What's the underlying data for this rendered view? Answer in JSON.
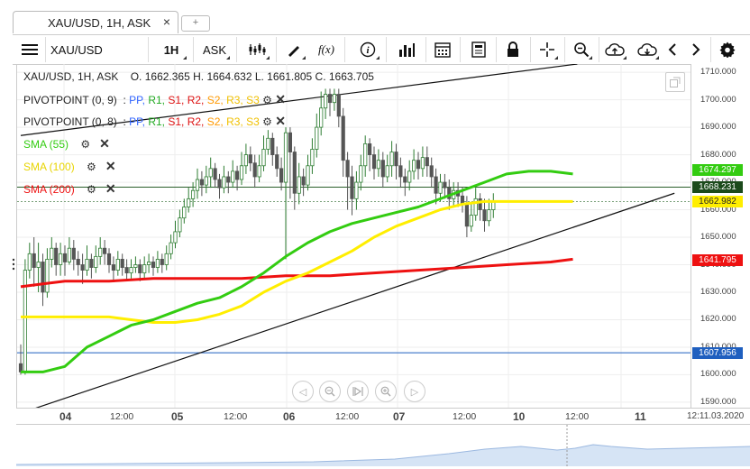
{
  "tab": {
    "title": "XAU/USD, 1H, ASK",
    "close": "×",
    "add": "+"
  },
  "toolbar": {
    "menu_icon": "hamburger-icon",
    "symbol": "XAU/USD",
    "period": "1H",
    "side": "ASK",
    "fx_label": "f(x)",
    "info_label": "i"
  },
  "legend": {
    "ohlc_header": "XAU/USD, 1H, ASK",
    "ohlc_values": "O. 1662.365  H. 1664.632  L. 1661.805  C. 1663.705",
    "pivot1": {
      "name": "PIVOTPOINT (0, 9)",
      "sep": ":",
      "pp": "PP,",
      "r1": "R1,",
      "s1": "S1,",
      "r2": "R2,",
      "s2": "S2,",
      "r3": "R3,",
      "s3": "S3"
    },
    "pivot2": {
      "name": "PIVOTPOINT (0, 8)",
      "sep": ":",
      "pp": "PP,",
      "r1": "R1,",
      "s1": "S1,",
      "r2": "R2,",
      "s2": "S2,",
      "r3": "R3,",
      "s3": "S3"
    },
    "sma55": "SMA (55)",
    "sma100": "SMA (100)",
    "sma200": "SMA (200)"
  },
  "colors": {
    "candle_up": "#2e7d32",
    "candle_down": "#555555",
    "sma55": "#33cc11",
    "sma100": "#ffee00",
    "sma200": "#ee1111",
    "pp": "#3366ff",
    "r1": "#22aa22",
    "s1": "#dd1111",
    "r2": "#dd1111",
    "s2": "#ff9900",
    "r3": "#f0c000",
    "s3": "#f0c000"
  },
  "price_axis": {
    "ticks": [
      "1710.000",
      "1700.000",
      "1690.000",
      "1680.000",
      "1670.000",
      "1660.000",
      "1650.000",
      "1640.000",
      "1630.000",
      "1620.000",
      "1610.000",
      "1600.000",
      "1590.000"
    ],
    "labels": [
      {
        "text": "1674.297",
        "color": "#33cc11",
        "fg": "#ffffff"
      },
      {
        "text": "1668.231",
        "color": "#1b4a1b",
        "fg": "#ffffff"
      },
      {
        "text": "1662.982",
        "color": "#ffee00",
        "fg": "#222222"
      },
      {
        "text": "1641.795",
        "color": "#ee1111",
        "fg": "#ffffff"
      },
      {
        "text": "1607.956",
        "color": "#1f5fbf",
        "fg": "#ffffff"
      }
    ]
  },
  "time_axis": {
    "labels": [
      {
        "text": "04",
        "bold": true
      },
      {
        "text": "12:00",
        "bold": false
      },
      {
        "text": "05",
        "bold": true
      },
      {
        "text": "12:00",
        "bold": false
      },
      {
        "text": "06",
        "bold": true
      },
      {
        "text": "12:00",
        "bold": false
      },
      {
        "text": "07",
        "bold": true
      },
      {
        "text": "12:00",
        "bold": false
      },
      {
        "text": "10",
        "bold": true
      },
      {
        "text": "12:00",
        "bold": false
      },
      {
        "text": "11",
        "bold": true
      }
    ],
    "cursor_time": "12:11.03.2020"
  },
  "chart_data": {
    "type": "candlestick",
    "symbol": "XAU/USD",
    "timeframe": "1H",
    "ylim": [
      1588,
      1713
    ],
    "sma55": [
      [
        0,
        1601
      ],
      [
        5,
        1601
      ],
      [
        10,
        1603
      ],
      [
        15,
        1610
      ],
      [
        20,
        1614
      ],
      [
        25,
        1618
      ],
      [
        30,
        1620
      ],
      [
        35,
        1623
      ],
      [
        40,
        1626
      ],
      [
        45,
        1628
      ],
      [
        50,
        1632
      ],
      [
        55,
        1637
      ],
      [
        60,
        1643
      ],
      [
        65,
        1648
      ],
      [
        70,
        1652
      ],
      [
        75,
        1655
      ],
      [
        80,
        1657
      ],
      [
        85,
        1659
      ],
      [
        90,
        1661
      ],
      [
        95,
        1664
      ],
      [
        100,
        1667
      ],
      [
        105,
        1670
      ],
      [
        110,
        1673
      ],
      [
        115,
        1674
      ],
      [
        120,
        1674
      ],
      [
        125,
        1673
      ]
    ],
    "sma100": [
      [
        0,
        1621
      ],
      [
        10,
        1621
      ],
      [
        20,
        1621
      ],
      [
        25,
        1620
      ],
      [
        30,
        1619
      ],
      [
        35,
        1619
      ],
      [
        40,
        1620
      ],
      [
        45,
        1622
      ],
      [
        50,
        1625
      ],
      [
        55,
        1630
      ],
      [
        60,
        1634
      ],
      [
        65,
        1637
      ],
      [
        70,
        1641
      ],
      [
        75,
        1645
      ],
      [
        80,
        1650
      ],
      [
        85,
        1654
      ],
      [
        90,
        1657
      ],
      [
        95,
        1660
      ],
      [
        100,
        1662
      ],
      [
        105,
        1663
      ],
      [
        110,
        1663
      ],
      [
        115,
        1663
      ],
      [
        120,
        1663
      ],
      [
        125,
        1663
      ]
    ],
    "sma200": [
      [
        0,
        1632
      ],
      [
        5,
        1633
      ],
      [
        10,
        1634
      ],
      [
        20,
        1634
      ],
      [
        30,
        1635
      ],
      [
        40,
        1635
      ],
      [
        50,
        1635
      ],
      [
        60,
        1636
      ],
      [
        70,
        1636
      ],
      [
        80,
        1637
      ],
      [
        90,
        1638
      ],
      [
        100,
        1639
      ],
      [
        110,
        1640
      ],
      [
        120,
        1641
      ],
      [
        125,
        1642
      ]
    ],
    "trendline_upper": [
      [
        0,
        1687
      ],
      [
        126,
        1713
      ]
    ],
    "trendline_lower": [
      [
        0,
        1586
      ],
      [
        148,
        1666
      ]
    ],
    "hline_green": 1668.231,
    "hline_dashed": 1662.982,
    "hline_blue": 1607.956,
    "candles": [
      [
        1604,
        1601,
        1611,
        1600
      ],
      [
        1601,
        1638,
        1642,
        1600
      ],
      [
        1638,
        1644,
        1648,
        1635
      ],
      [
        1644,
        1639,
        1650,
        1632
      ],
      [
        1639,
        1641,
        1648,
        1630
      ],
      [
        1641,
        1630,
        1644,
        1625
      ],
      [
        1630,
        1642,
        1646,
        1628
      ],
      [
        1642,
        1646,
        1650,
        1639
      ],
      [
        1646,
        1640,
        1648,
        1636
      ],
      [
        1640,
        1644,
        1648,
        1636
      ],
      [
        1644,
        1641,
        1647,
        1636
      ],
      [
        1641,
        1646,
        1650,
        1640
      ],
      [
        1646,
        1642,
        1649,
        1638
      ],
      [
        1642,
        1640,
        1645,
        1636
      ],
      [
        1640,
        1638,
        1644,
        1633
      ],
      [
        1638,
        1642,
        1647,
        1636
      ],
      [
        1642,
        1639,
        1644,
        1635
      ],
      [
        1639,
        1643,
        1647,
        1637
      ],
      [
        1643,
        1646,
        1650,
        1640
      ],
      [
        1646,
        1644,
        1649,
        1640
      ],
      [
        1644,
        1640,
        1646,
        1637
      ],
      [
        1640,
        1638,
        1643,
        1634
      ],
      [
        1638,
        1642,
        1645,
        1636
      ],
      [
        1642,
        1639,
        1644,
        1636
      ],
      [
        1639,
        1637,
        1642,
        1634
      ],
      [
        1637,
        1639,
        1642,
        1635
      ],
      [
        1639,
        1640,
        1643,
        1637
      ],
      [
        1640,
        1637,
        1642,
        1634
      ],
      [
        1637,
        1640,
        1643,
        1635
      ],
      [
        1640,
        1641,
        1644,
        1637
      ],
      [
        1641,
        1639,
        1643,
        1636
      ],
      [
        1639,
        1642,
        1645,
        1637
      ],
      [
        1642,
        1640,
        1644,
        1637
      ],
      [
        1640,
        1644,
        1647,
        1638
      ],
      [
        1644,
        1648,
        1651,
        1642
      ],
      [
        1648,
        1652,
        1656,
        1646
      ],
      [
        1652,
        1657,
        1660,
        1650
      ],
      [
        1657,
        1661,
        1664,
        1655
      ],
      [
        1661,
        1664,
        1668,
        1659
      ],
      [
        1664,
        1667,
        1670,
        1661
      ],
      [
        1667,
        1671,
        1675,
        1664
      ],
      [
        1671,
        1669,
        1674,
        1665
      ],
      [
        1669,
        1672,
        1676,
        1666
      ],
      [
        1672,
        1675,
        1679,
        1668
      ],
      [
        1675,
        1671,
        1677,
        1668
      ],
      [
        1671,
        1668,
        1673,
        1664
      ],
      [
        1668,
        1672,
        1676,
        1666
      ],
      [
        1672,
        1670,
        1674,
        1666
      ],
      [
        1670,
        1674,
        1678,
        1668
      ],
      [
        1674,
        1671,
        1676,
        1667
      ],
      [
        1671,
        1676,
        1681,
        1669
      ],
      [
        1676,
        1680,
        1684,
        1673
      ],
      [
        1680,
        1677,
        1683,
        1674
      ],
      [
        1677,
        1672,
        1680,
        1668
      ],
      [
        1672,
        1676,
        1680,
        1670
      ],
      [
        1676,
        1682,
        1687,
        1674
      ],
      [
        1682,
        1686,
        1689,
        1680
      ],
      [
        1686,
        1680,
        1688,
        1676
      ],
      [
        1680,
        1675,
        1683,
        1672
      ],
      [
        1675,
        1670,
        1679,
        1667
      ],
      [
        1670,
        1688,
        1690,
        1642
      ],
      [
        1688,
        1681,
        1690,
        1664
      ],
      [
        1681,
        1666,
        1683,
        1660
      ],
      [
        1666,
        1672,
        1677,
        1662
      ],
      [
        1672,
        1669,
        1675,
        1665
      ],
      [
        1669,
        1676,
        1680,
        1667
      ],
      [
        1676,
        1682,
        1686,
        1673
      ],
      [
        1682,
        1690,
        1695,
        1679
      ],
      [
        1690,
        1697,
        1703,
        1687
      ],
      [
        1697,
        1702,
        1704,
        1693
      ],
      [
        1702,
        1699,
        1704,
        1694
      ],
      [
        1699,
        1702,
        1704,
        1696
      ],
      [
        1702,
        1694,
        1704,
        1690
      ],
      [
        1694,
        1678,
        1697,
        1672
      ],
      [
        1678,
        1672,
        1681,
        1660
      ],
      [
        1672,
        1664,
        1676,
        1658
      ],
      [
        1664,
        1670,
        1674,
        1660
      ],
      [
        1670,
        1676,
        1680,
        1667
      ],
      [
        1676,
        1684,
        1687,
        1672
      ],
      [
        1684,
        1680,
        1686,
        1674
      ],
      [
        1680,
        1675,
        1683,
        1671
      ],
      [
        1675,
        1678,
        1682,
        1672
      ],
      [
        1678,
        1672,
        1681,
        1668
      ],
      [
        1672,
        1676,
        1680,
        1670
      ],
      [
        1676,
        1681,
        1685,
        1672
      ],
      [
        1681,
        1676,
        1684,
        1671
      ],
      [
        1676,
        1672,
        1679,
        1668
      ],
      [
        1672,
        1670,
        1675,
        1665
      ],
      [
        1670,
        1674,
        1678,
        1667
      ],
      [
        1674,
        1678,
        1682,
        1671
      ],
      [
        1678,
        1675,
        1681,
        1671
      ],
      [
        1675,
        1679,
        1683,
        1672
      ],
      [
        1679,
        1676,
        1683,
        1672
      ],
      [
        1676,
        1672,
        1679,
        1668
      ],
      [
        1672,
        1666,
        1675,
        1662
      ],
      [
        1666,
        1670,
        1673,
        1663
      ],
      [
        1670,
        1668,
        1673,
        1664
      ],
      [
        1668,
        1664,
        1671,
        1660
      ],
      [
        1664,
        1667,
        1670,
        1661
      ],
      [
        1667,
        1665,
        1670,
        1661
      ],
      [
        1665,
        1662,
        1668,
        1659
      ],
      [
        1662,
        1654,
        1665,
        1650
      ],
      [
        1654,
        1658,
        1662,
        1652
      ],
      [
        1658,
        1664,
        1668,
        1656
      ],
      [
        1664,
        1660,
        1666,
        1656
      ],
      [
        1660,
        1656,
        1664,
        1652
      ],
      [
        1656,
        1660,
        1664,
        1654
      ],
      [
        1660,
        1663,
        1666,
        1657
      ]
    ]
  }
}
